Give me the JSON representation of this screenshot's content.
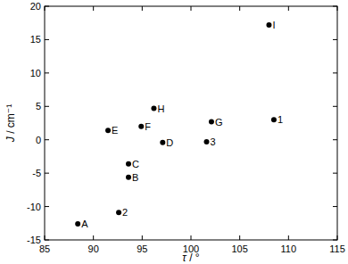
{
  "chart_data": {
    "type": "scatter",
    "x_label": "τ / °",
    "y_label": "J / cm⁻¹",
    "labels": [
      "A",
      "2",
      "B",
      "C",
      "E",
      "F",
      "H",
      "D",
      "3",
      "G",
      "I",
      "1"
    ],
    "x": [
      88.4,
      92.6,
      93.6,
      93.6,
      91.5,
      94.9,
      96.2,
      97.1,
      101.6,
      102.1,
      108.0,
      108.5
    ],
    "values": [
      -12.6,
      -10.9,
      -5.6,
      -3.6,
      1.4,
      2.0,
      4.7,
      -0.4,
      -0.3,
      2.7,
      17.2,
      3.0
    ],
    "color": "#000000",
    "marker": "circle",
    "xlim": [
      85,
      115
    ],
    "xticks": [
      85,
      90,
      95,
      100,
      105,
      110,
      115
    ],
    "ylim": [
      -15,
      20
    ],
    "yticks": [
      -15,
      -10,
      -5,
      0,
      5,
      10,
      15,
      20
    ],
    "grid": false
  }
}
